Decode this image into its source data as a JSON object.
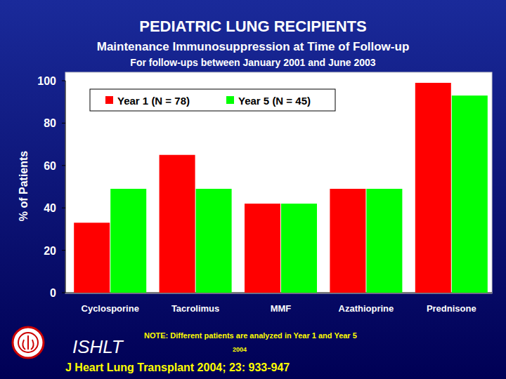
{
  "chart_data": {
    "type": "bar",
    "title": "PEDIATRIC LUNG RECIPIENTS",
    "subtitle": [
      "Maintenance Immunosuppression at Time of Follow-up",
      "For follow-ups between January 2001 and June 2003"
    ],
    "y_label": "% of Patients",
    "categories": [
      "Cyclosporine",
      "Tacrolimus",
      "MMF",
      "Azathioprine",
      "Prednisone"
    ],
    "series": [
      {
        "name": "Year 1 (N = 78)",
        "color": "#ff0000",
        "values": [
          33,
          65,
          42,
          49,
          99
        ]
      },
      {
        "name": "Year 5 (N = 45)",
        "color": "#00ff00",
        "values": [
          49,
          49,
          42,
          49,
          93
        ]
      }
    ],
    "ylim": [
      0,
      100
    ],
    "yticks": [
      0,
      20,
      40,
      60,
      80,
      100
    ],
    "grid": false,
    "legend": "top-left",
    "annotations": [
      "NOTE: Different patients are analyzed in Year 1 and Year 5",
      "2004",
      "ISHLT",
      "J Heart Lung Transplant 2004; 23: 933-947"
    ]
  }
}
